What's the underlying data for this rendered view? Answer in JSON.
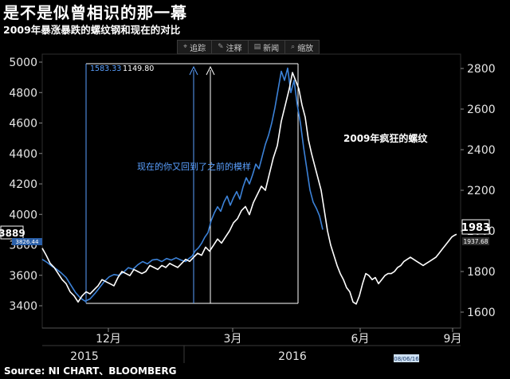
{
  "title": "是不是似曾相识的那一幕",
  "subtitle": "2009年暴涨暴跌的螺纹钢和现在的对比",
  "toolbar": [
    {
      "icon": "crosshair-icon",
      "glyph": "⌖",
      "label": "追踪"
    },
    {
      "icon": "pencil-icon",
      "glyph": "✎",
      "label": "注释"
    },
    {
      "icon": "news-icon",
      "glyph": "▤",
      "label": "新闻"
    },
    {
      "icon": "zoom-icon",
      "glyph": "⌕",
      "label": "缩放"
    }
  ],
  "source": "Source: NI CHART、BLOOMBERG",
  "colors": {
    "current": "#3c82d8",
    "history2009": "#ffffff",
    "annotation_blue": "#5aa0ff",
    "last_box": "#000000"
  },
  "chart_data": {
    "type": "line",
    "title": "是不是似曾相识的那一幕",
    "left_axis": {
      "min": 3300,
      "max": 5100,
      "ticks": [
        3400,
        3600,
        3800,
        4000,
        4200,
        4400,
        4600,
        4800,
        5000
      ]
    },
    "right_axis": {
      "min": 1530,
      "max": 2900,
      "ticks": [
        1600,
        1800,
        2000,
        2200,
        2400,
        2600,
        2800
      ]
    },
    "x_labels": [
      {
        "label": "12月",
        "t": 83
      },
      {
        "label": "3月",
        "t": 239
      },
      {
        "label": "6月",
        "t": 399
      },
      {
        "label": "9月",
        "t": 515
      }
    ],
    "year_labels": [
      {
        "label": "2015",
        "t": 53
      },
      {
        "label": "2016",
        "t": 314
      }
    ],
    "year_divider_t": 178,
    "series": [
      {
        "name": "现在的你又回到了之前的模样",
        "axis": "left",
        "points": [
          [
            0,
            3705
          ],
          [
            6,
            3685
          ],
          [
            12,
            3660
          ],
          [
            18,
            3640
          ],
          [
            24,
            3615
          ],
          [
            30,
            3585
          ],
          [
            36,
            3535
          ],
          [
            42,
            3485
          ],
          [
            48,
            3450
          ],
          [
            54,
            3430
          ],
          [
            60,
            3445
          ],
          [
            66,
            3480
          ],
          [
            72,
            3520
          ],
          [
            78,
            3560
          ],
          [
            84,
            3590
          ],
          [
            90,
            3605
          ],
          [
            96,
            3600
          ],
          [
            102,
            3620
          ],
          [
            108,
            3650
          ],
          [
            114,
            3640
          ],
          [
            120,
            3670
          ],
          [
            126,
            3690
          ],
          [
            132,
            3675
          ],
          [
            138,
            3700
          ],
          [
            144,
            3705
          ],
          [
            150,
            3690
          ],
          [
            156,
            3710
          ],
          [
            162,
            3700
          ],
          [
            168,
            3715
          ],
          [
            174,
            3700
          ],
          [
            180,
            3690
          ],
          [
            184,
            3710
          ],
          [
            188,
            3725
          ],
          [
            192,
            3760
          ],
          [
            196,
            3780
          ],
          [
            200,
            3810
          ],
          [
            204,
            3850
          ],
          [
            208,
            3880
          ],
          [
            212,
            3960
          ],
          [
            216,
            4010
          ],
          [
            220,
            4050
          ],
          [
            224,
            4020
          ],
          [
            228,
            4080
          ],
          [
            232,
            4120
          ],
          [
            236,
            4060
          ],
          [
            240,
            4110
          ],
          [
            244,
            4150
          ],
          [
            248,
            4100
          ],
          [
            252,
            4180
          ],
          [
            256,
            4240
          ],
          [
            260,
            4200
          ],
          [
            264,
            4260
          ],
          [
            268,
            4330
          ],
          [
            272,
            4300
          ],
          [
            276,
            4380
          ],
          [
            280,
            4460
          ],
          [
            284,
            4520
          ],
          [
            288,
            4600
          ],
          [
            292,
            4700
          ],
          [
            296,
            4820
          ],
          [
            300,
            4940
          ],
          [
            304,
            4880
          ],
          [
            308,
            4960
          ],
          [
            312,
            4800
          ],
          [
            316,
            4880
          ],
          [
            320,
            4720
          ],
          [
            324,
            4600
          ],
          [
            328,
            4440
          ],
          [
            332,
            4300
          ],
          [
            336,
            4160
          ],
          [
            340,
            4080
          ],
          [
            344,
            4040
          ],
          [
            348,
            3990
          ],
          [
            352,
            3900
          ]
        ]
      },
      {
        "name": "2009年疯狂的螺纹",
        "axis": "right",
        "points": [
          [
            0,
            1915
          ],
          [
            5,
            1880
          ],
          [
            10,
            1840
          ],
          [
            15,
            1820
          ],
          [
            20,
            1790
          ],
          [
            25,
            1760
          ],
          [
            30,
            1740
          ],
          [
            35,
            1700
          ],
          [
            40,
            1680
          ],
          [
            45,
            1650
          ],
          [
            50,
            1680
          ],
          [
            55,
            1700
          ],
          [
            60,
            1690
          ],
          [
            65,
            1710
          ],
          [
            70,
            1730
          ],
          [
            75,
            1760
          ],
          [
            80,
            1750
          ],
          [
            85,
            1740
          ],
          [
            90,
            1730
          ],
          [
            95,
            1770
          ],
          [
            100,
            1800
          ],
          [
            105,
            1790
          ],
          [
            110,
            1780
          ],
          [
            115,
            1810
          ],
          [
            120,
            1800
          ],
          [
            125,
            1790
          ],
          [
            130,
            1800
          ],
          [
            135,
            1830
          ],
          [
            140,
            1820
          ],
          [
            145,
            1810
          ],
          [
            150,
            1830
          ],
          [
            155,
            1820
          ],
          [
            160,
            1840
          ],
          [
            165,
            1830
          ],
          [
            170,
            1820
          ],
          [
            175,
            1840
          ],
          [
            180,
            1860
          ],
          [
            185,
            1850
          ],
          [
            190,
            1870
          ],
          [
            195,
            1890
          ],
          [
            200,
            1880
          ],
          [
            205,
            1920
          ],
          [
            210,
            1900
          ],
          [
            215,
            1930
          ],
          [
            220,
            1960
          ],
          [
            225,
            1940
          ],
          [
            230,
            1970
          ],
          [
            235,
            2000
          ],
          [
            240,
            2040
          ],
          [
            245,
            2060
          ],
          [
            250,
            2100
          ],
          [
            255,
            2120
          ],
          [
            260,
            2080
          ],
          [
            265,
            2140
          ],
          [
            270,
            2180
          ],
          [
            275,
            2220
          ],
          [
            280,
            2200
          ],
          [
            285,
            2280
          ],
          [
            290,
            2360
          ],
          [
            295,
            2420
          ],
          [
            300,
            2540
          ],
          [
            305,
            2620
          ],
          [
            310,
            2700
          ],
          [
            314,
            2780
          ],
          [
            318,
            2740
          ],
          [
            322,
            2700
          ],
          [
            326,
            2620
          ],
          [
            330,
            2560
          ],
          [
            334,
            2450
          ],
          [
            338,
            2380
          ],
          [
            342,
            2320
          ],
          [
            346,
            2260
          ],
          [
            350,
            2200
          ],
          [
            354,
            2100
          ],
          [
            358,
            2000
          ],
          [
            362,
            1930
          ],
          [
            366,
            1880
          ],
          [
            370,
            1830
          ],
          [
            374,
            1790
          ],
          [
            378,
            1760
          ],
          [
            382,
            1720
          ],
          [
            386,
            1700
          ],
          [
            390,
            1650
          ],
          [
            394,
            1640
          ],
          [
            398,
            1680
          ],
          [
            402,
            1740
          ],
          [
            406,
            1790
          ],
          [
            410,
            1780
          ],
          [
            414,
            1760
          ],
          [
            418,
            1770
          ],
          [
            422,
            1740
          ],
          [
            426,
            1760
          ],
          [
            430,
            1780
          ],
          [
            434,
            1790
          ],
          [
            438,
            1790
          ],
          [
            442,
            1800
          ],
          [
            446,
            1820
          ],
          [
            450,
            1830
          ],
          [
            454,
            1850
          ],
          [
            458,
            1860
          ],
          [
            462,
            1870
          ],
          [
            466,
            1860
          ],
          [
            470,
            1850
          ],
          [
            474,
            1840
          ],
          [
            478,
            1830
          ],
          [
            482,
            1840
          ],
          [
            486,
            1850
          ],
          [
            490,
            1860
          ],
          [
            494,
            1870
          ],
          [
            498,
            1890
          ],
          [
            502,
            1910
          ],
          [
            506,
            1930
          ],
          [
            510,
            1950
          ],
          [
            514,
            1970
          ],
          [
            518,
            1980
          ],
          [
            520,
            1983
          ]
        ]
      }
    ],
    "last_values": {
      "left": "3889",
      "right": "1983",
      "left_small": "3826.44",
      "right_small": "1937.68"
    },
    "measure_labels": [
      "1583.33",
      "1149.80"
    ],
    "annotations": {
      "blue_text": "现在的你又回到了之前的模样",
      "white_text": "2009年疯狂的螺纹",
      "date_tag": "08/06/16"
    }
  }
}
